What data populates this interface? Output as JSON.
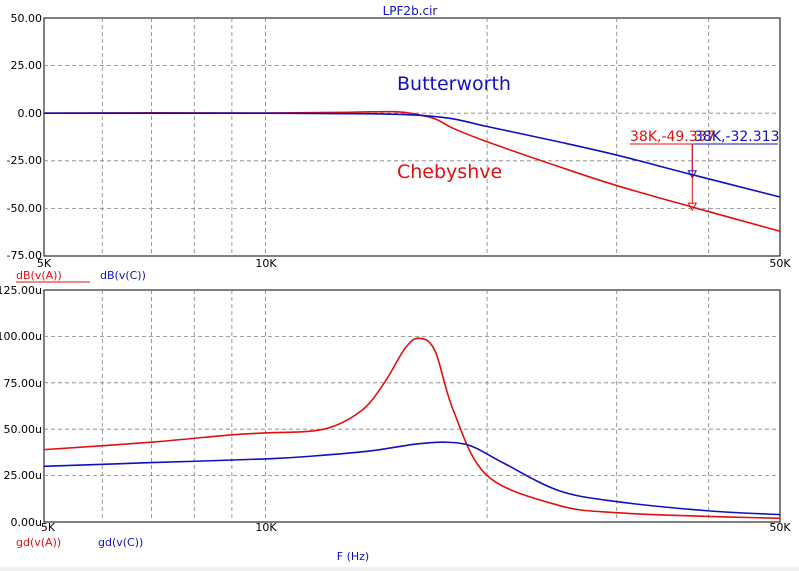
{
  "window": {
    "title": "LPF2b.cir"
  },
  "colors": {
    "red": "#e01010",
    "blue": "#1010c0",
    "grid": "#808080"
  },
  "chart_data": [
    {
      "type": "line",
      "x_scale": "log",
      "xlim": [
        5000,
        50000
      ],
      "ylim": [
        -75,
        50
      ],
      "x_tick_labels": [
        "5K",
        "10K",
        "50K"
      ],
      "y_tick_labels": [
        "50.00",
        "25.00",
        "0.00",
        "-25.00",
        "-50.00",
        "-75.00"
      ],
      "legend": [
        "dB(v(A))",
        "dB(v(C))"
      ],
      "annotations": {
        "butterworth": "Butterworth",
        "chebyshev": "Chebyshve",
        "cursor_a": "38K,-49.337",
        "cursor_c": "38K,-32.313"
      },
      "series": [
        {
          "name": "dB(v(A))",
          "color": "red",
          "x": [
            5000,
            7000,
            10000,
            13000,
            15000,
            16000,
            17000,
            18000,
            20000,
            25000,
            30000,
            38000,
            50000
          ],
          "y": [
            0,
            0.2,
            0.1,
            0.5,
            0.8,
            -0.5,
            -3,
            -8,
            -15,
            -28,
            -38,
            -49.3,
            -62
          ]
        },
        {
          "name": "dB(v(C))",
          "color": "blue",
          "x": [
            5000,
            10000,
            14000,
            16000,
            18000,
            20000,
            25000,
            30000,
            38000,
            50000
          ],
          "y": [
            0,
            0,
            -0.3,
            -1,
            -3,
            -7,
            -15,
            -22,
            -32.3,
            -44
          ]
        }
      ]
    },
    {
      "type": "line",
      "x_scale": "log",
      "xlim": [
        5000,
        50000
      ],
      "ylim": [
        0,
        125
      ],
      "xlabel": "F (Hz)",
      "x_tick_labels": [
        "5K",
        "10K",
        "50K"
      ],
      "y_tick_labels": [
        "125.00u",
        "100.00u",
        "75.00u",
        "50.00u",
        "25.00u",
        "0.00u"
      ],
      "legend": [
        "gd(v(A))",
        "gd(v(C))"
      ],
      "series": [
        {
          "name": "gd(v(A))",
          "color": "red",
          "x": [
            5000,
            7000,
            9000,
            10000,
            12000,
            13500,
            14500,
            15500,
            16200,
            17000,
            18000,
            20000,
            25000,
            30000,
            40000,
            50000
          ],
          "y": [
            39,
            43,
            47,
            48,
            50,
            60,
            75,
            94,
            99,
            92,
            60,
            25,
            9,
            5,
            3,
            2
          ]
        },
        {
          "name": "gd(v(C))",
          "color": "blue",
          "x": [
            5000,
            7000,
            10000,
            12000,
            14000,
            16000,
            17500,
            19000,
            21000,
            25000,
            30000,
            40000,
            50000
          ],
          "y": [
            30,
            32,
            34,
            36,
            38.5,
            42,
            43,
            41,
            32,
            17,
            11,
            6,
            4
          ]
        }
      ]
    }
  ]
}
